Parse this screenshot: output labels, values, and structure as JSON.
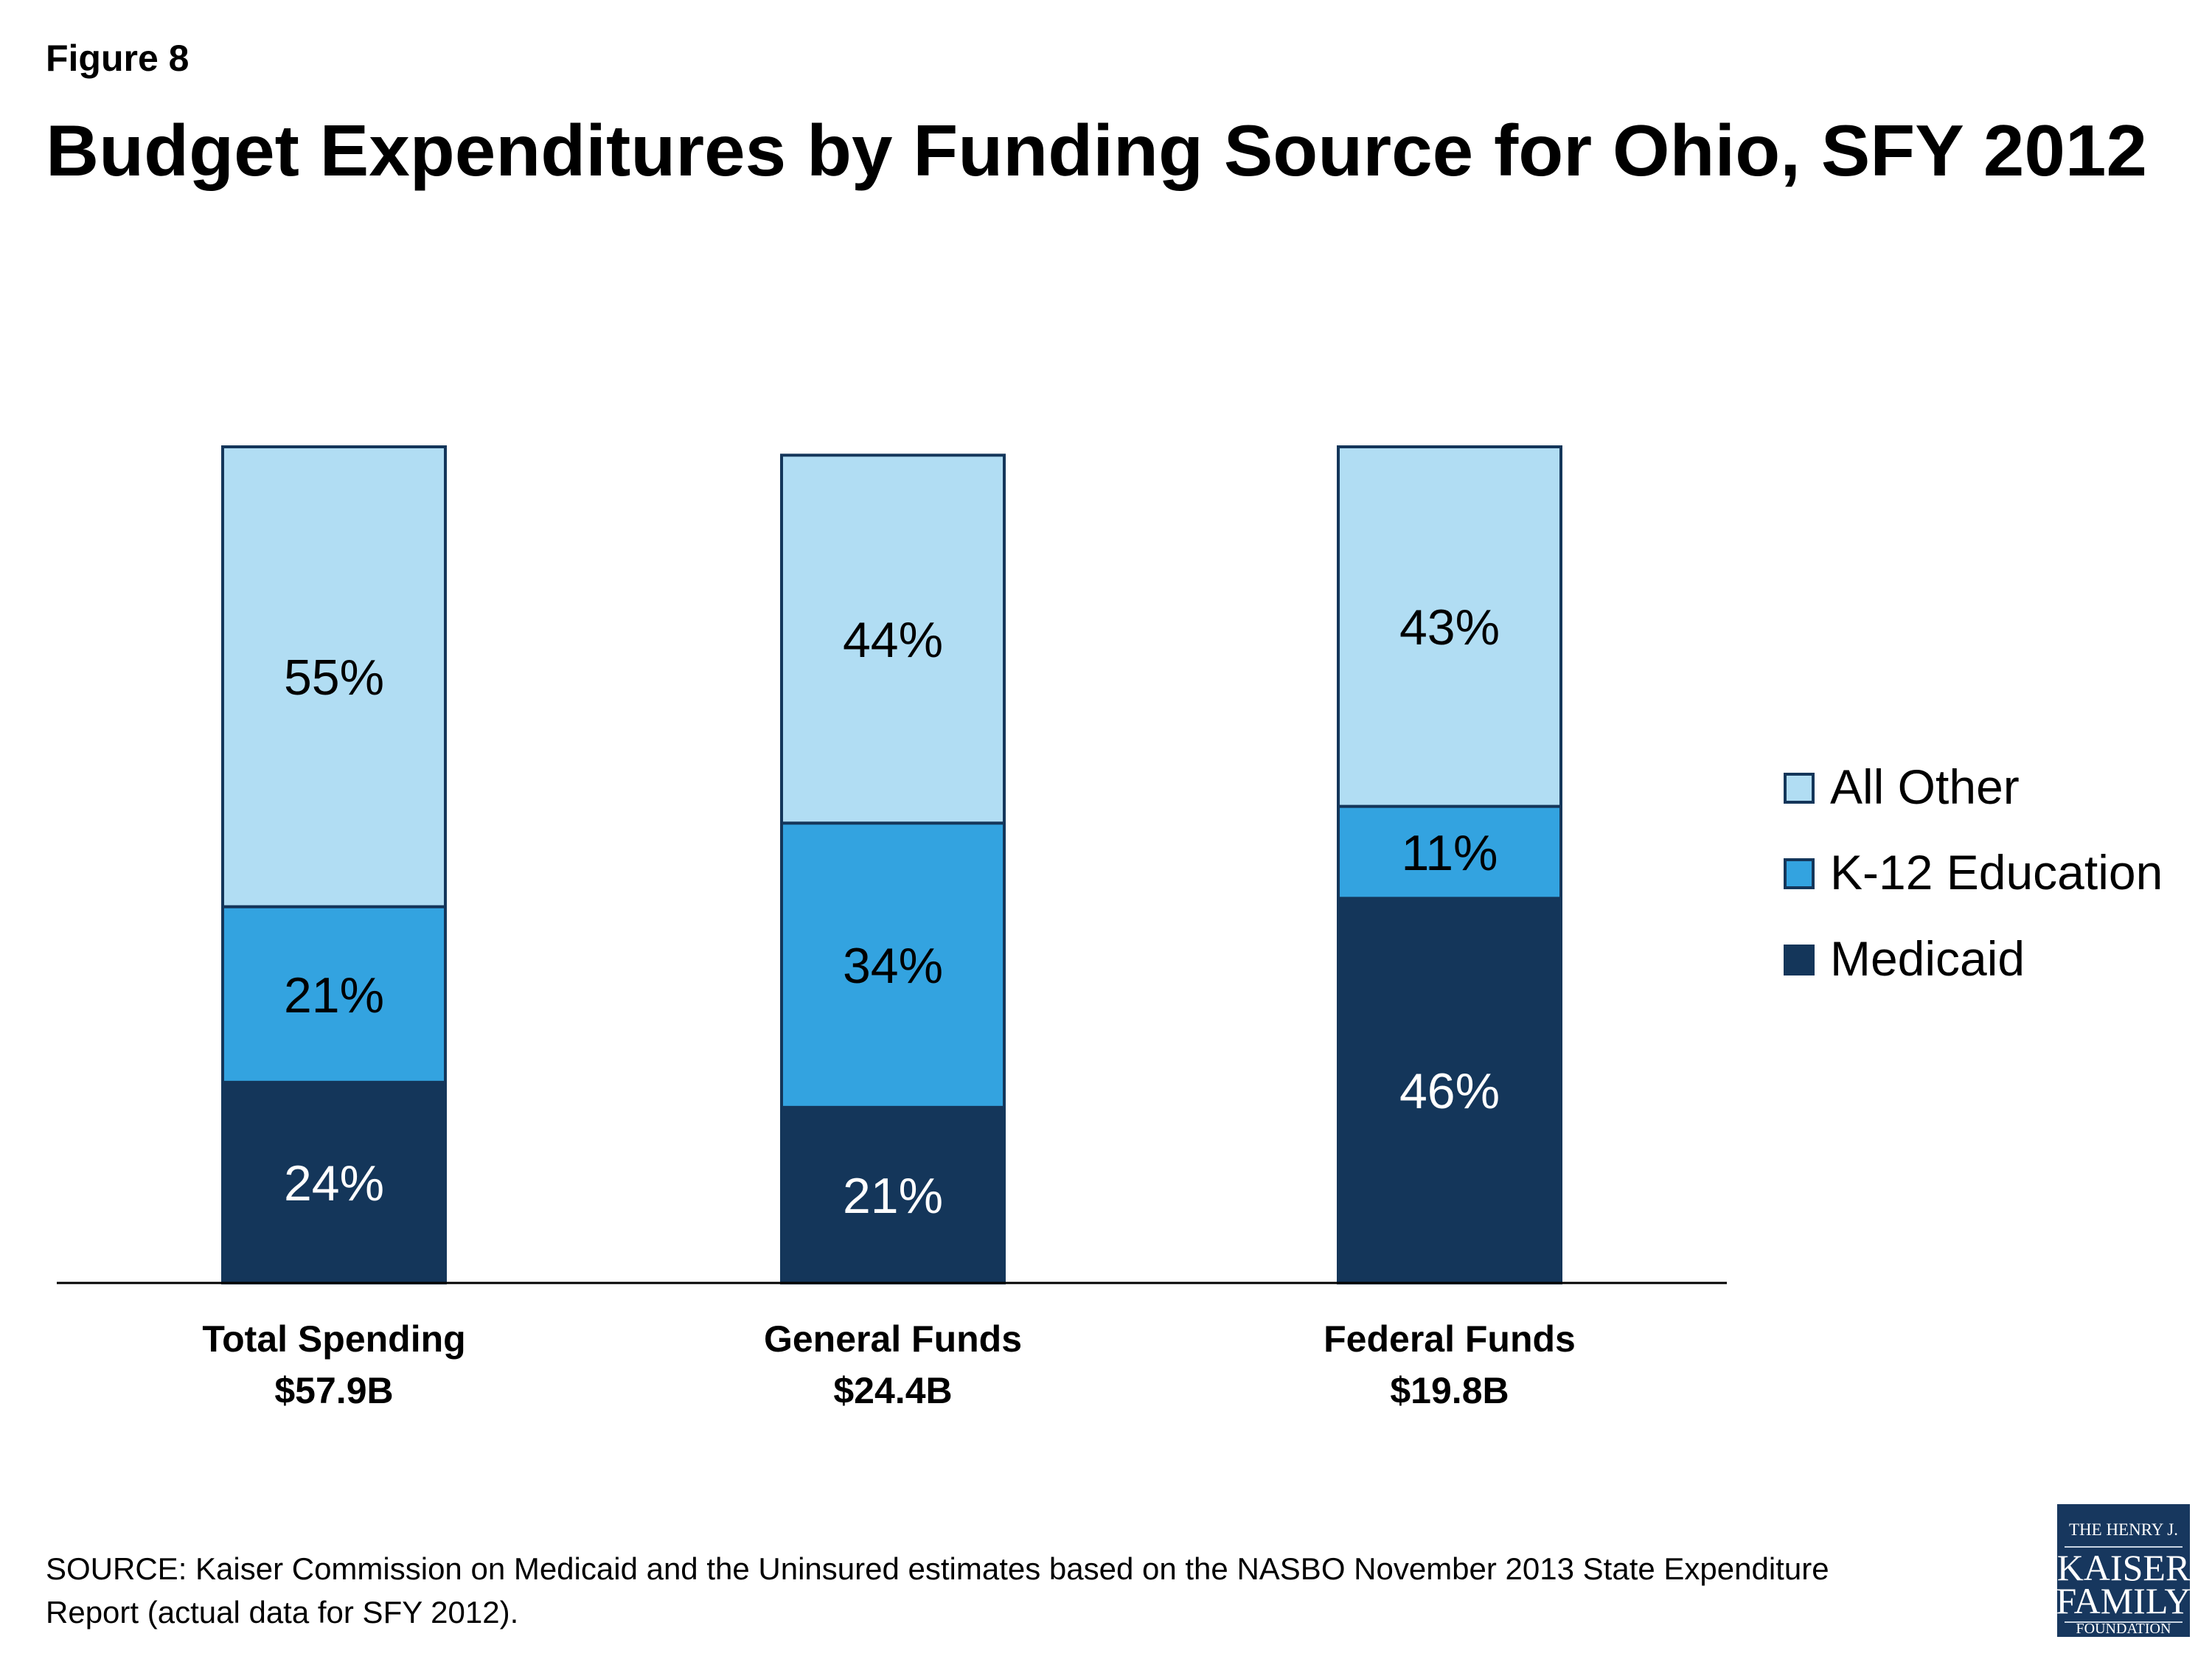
{
  "figure_label": "Figure 8",
  "source": {
    "line1": "SOURCE: Kaiser Commission on Medicaid and the Uninsured estimates based on the NASBO November 2013 State Expenditure",
    "line2": "Report (actual data for SFY 2012)."
  },
  "logo": {
    "line1": "THE HENRY J.",
    "line2": "KAISER",
    "line3": "FAMILY",
    "line4": "FOUNDATION"
  },
  "chart_data": {
    "type": "bar",
    "stacked": true,
    "title": "Budget Expenditures by Funding Source for Ohio, SFY 2012",
    "xlabel": "",
    "ylabel": "",
    "ylim": [
      0,
      100
    ],
    "grid": false,
    "legend_position": "right",
    "categories": [
      {
        "name": "Total Spending",
        "amount": "$57.9B"
      },
      {
        "name": "General Funds",
        "amount": "$24.4B"
      },
      {
        "name": "Federal Funds",
        "amount": "$19.8B"
      }
    ],
    "series": [
      {
        "name": "Medicaid",
        "color": "#14365a",
        "label_color": "#ffffff",
        "values": [
          24,
          21,
          46
        ]
      },
      {
        "name": "K-12 Education",
        "color": "#33a3e0",
        "label_color": "#000000",
        "values": [
          21,
          34,
          11
        ]
      },
      {
        "name": "All Other",
        "color": "#b1ddf3",
        "label_color": "#000000",
        "values": [
          55,
          44,
          43
        ]
      }
    ],
    "legend_order": [
      "All Other",
      "K-12 Education",
      "Medicaid"
    ],
    "border_color": "#14365a"
  }
}
